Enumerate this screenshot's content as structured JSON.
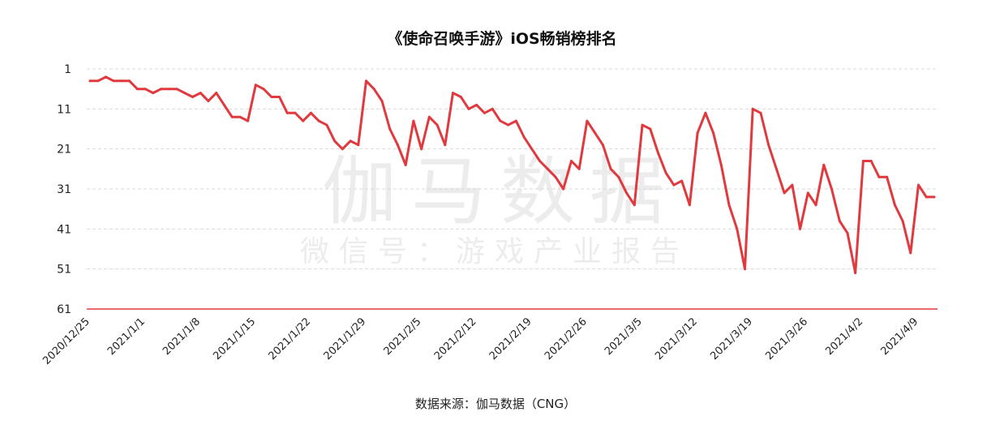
{
  "chart_data": {
    "type": "line",
    "title": "《使命召唤手游》iOS畅销榜排名",
    "source": "数据来源：伽马数据（CNG）",
    "watermark": {
      "line1": "伽马数据",
      "line2": "微信号：游戏产业报告"
    },
    "y_axis": {
      "reversed": true,
      "ylim": [
        1,
        61
      ],
      "ticks": [
        "1",
        "11",
        "21",
        "31",
        "41",
        "51",
        "61"
      ]
    },
    "x_axis": {
      "start": "2020/12/25",
      "end": "2021/4/12",
      "tick_labels": [
        "2020/12/25",
        "2021/1/1",
        "2021/1/8",
        "2021/1/15",
        "2021/1/22",
        "2021/1/29",
        "2021/2/5",
        "2021/2/12",
        "2021/2/19",
        "2021/2/26",
        "2021/3/5",
        "2021/3/12",
        "2021/3/19",
        "2021/3/26",
        "2021/4/2",
        "2021/4/9"
      ]
    },
    "grid": true,
    "colors": {
      "line": "#e0393e",
      "baseline": "#e0393e",
      "grid": "#d9d9d9"
    },
    "series": [
      {
        "values": [
          4,
          4,
          3,
          4,
          4,
          4,
          6,
          6,
          7,
          6,
          6,
          6,
          7,
          8,
          7,
          9,
          7,
          10,
          13,
          13,
          14,
          5,
          6,
          8,
          8,
          12,
          12,
          14,
          12,
          14,
          15,
          19,
          21,
          19,
          20,
          4,
          6,
          9,
          16,
          20,
          25,
          14,
          21,
          13,
          15,
          20,
          7,
          8,
          11,
          10,
          12,
          11,
          14,
          15,
          14,
          18,
          21,
          24,
          26,
          28,
          31,
          24,
          26,
          14,
          17,
          20,
          26,
          28,
          32,
          35,
          15,
          16,
          22,
          27,
          30,
          29,
          35,
          17,
          12,
          17,
          25,
          35,
          41,
          51,
          11,
          12,
          20,
          26,
          32,
          30,
          41,
          32,
          35,
          25,
          31,
          39,
          42,
          52,
          24,
          24,
          28,
          28,
          35,
          39,
          47,
          30,
          33,
          33
        ]
      }
    ]
  }
}
